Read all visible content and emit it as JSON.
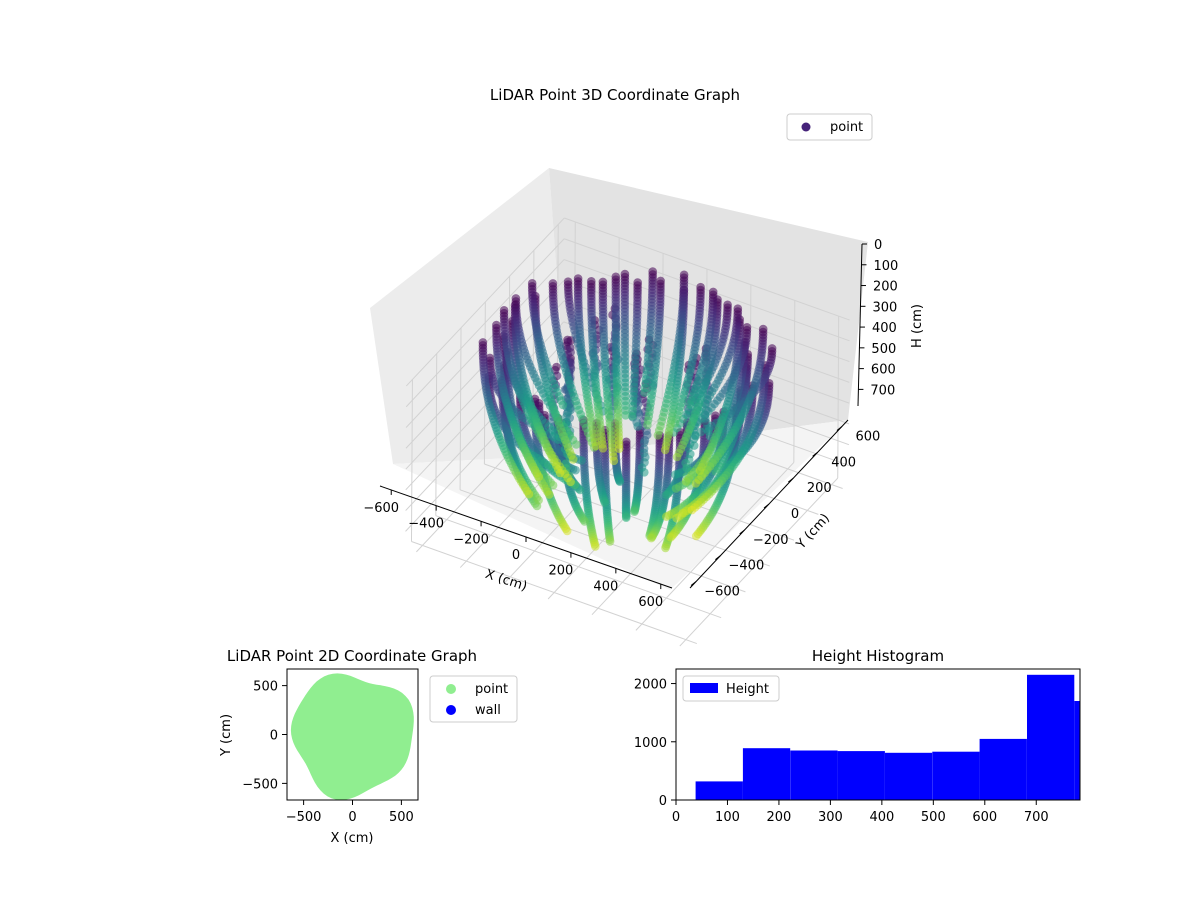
{
  "chart_data": [
    {
      "type": "scatter",
      "title": "LiDAR Point 3D Coordinate Graph",
      "xlabel": "X (cm)",
      "ylabel": "Y (cm)",
      "zlabel": "H (cm)",
      "x_ticks": [
        "−600",
        "−400",
        "−200",
        "0",
        "200",
        "400",
        "600"
      ],
      "y_ticks": [
        "−600",
        "−400",
        "−200",
        "0",
        "200",
        "400",
        "600"
      ],
      "z_ticks": [
        "0",
        "100",
        "200",
        "300",
        "400",
        "500",
        "600",
        "700"
      ],
      "xlim": [
        -650,
        650
      ],
      "ylim": [
        -650,
        650
      ],
      "zlim": [
        0,
        780
      ],
      "z_inverted": true,
      "colormap": "viridis",
      "legend": {
        "label": "point",
        "placement": "top-right",
        "color": "#46237a"
      },
      "series_note": "LiDAR point cloud; points form vertical strands from H≈0 down to H≈750 around a roughly circular boundary of radius ≈550 cm",
      "grid": true
    },
    {
      "type": "scatter",
      "title": "LiDAR Point 2D Coordinate Graph",
      "xlabel": "X (cm)",
      "ylabel": "Y (cm)",
      "x_ticks": [
        "−500",
        "0",
        "500"
      ],
      "y_ticks": [
        "−500",
        "0",
        "500"
      ],
      "xlim": [
        -670,
        670
      ],
      "ylim": [
        -670,
        670
      ],
      "legend": {
        "placement": "outside-right",
        "entries": [
          {
            "label": "point",
            "color": "#90ee90"
          },
          {
            "label": "wall",
            "color": "#0000ff"
          }
        ]
      },
      "boundary_radius": 620,
      "grid": false
    },
    {
      "type": "bar",
      "subtype": "histogram",
      "title": "Height Histogram",
      "x_ticks": [
        "0",
        "100",
        "200",
        "300",
        "400",
        "500",
        "600",
        "700"
      ],
      "y_ticks": [
        "0",
        "1000",
        "2000"
      ],
      "xlim": [
        0,
        785
      ],
      "ylim": [
        0,
        2250
      ],
      "bin_edges": [
        38,
        130,
        222,
        314,
        406,
        498,
        590,
        682,
        774,
        866
      ],
      "values": [
        320,
        890,
        850,
        840,
        810,
        830,
        1050,
        2150,
        1700
      ],
      "color": "#0000ff",
      "legend": {
        "label": "Height",
        "placement": "top-left"
      },
      "grid": false
    }
  ]
}
